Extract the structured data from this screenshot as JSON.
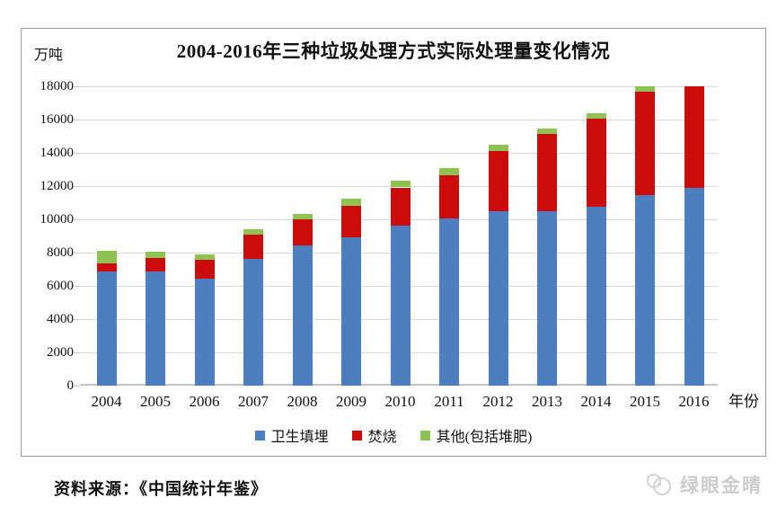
{
  "page": {
    "source_note": "资料来源：《中国统计年鉴》",
    "watermark_text": "绿眼金晴"
  },
  "colors": {
    "landfill_blue": "#4d7ebf",
    "incineration_red": "#cc0b0b",
    "other_green": "#8ec253",
    "gridline": "#dadada",
    "panel_border": "#9b9b9b",
    "watermark_gray": "#cccccc"
  },
  "chart_data": {
    "type": "bar",
    "variant": "stacked",
    "title": "2004-2016年三种垃圾处理方式实际处理量变化情况",
    "unit_label": "万吨",
    "xlabel": "年份",
    "ylabel": "万吨",
    "categories": [
      "2004",
      "2005",
      "2006",
      "2007",
      "2008",
      "2009",
      "2010",
      "2011",
      "2012",
      "2013",
      "2014",
      "2015",
      "2016"
    ],
    "series": [
      {
        "name": "卫生填埋",
        "color": "#4d7ebf",
        "values": [
          6890,
          6860,
          6410,
          7630,
          8420,
          8900,
          9600,
          10060,
          10510,
          10490,
          10740,
          11480,
          11870
        ]
      },
      {
        "name": "焚烧",
        "color": "#cc0b0b",
        "values": [
          450,
          790,
          1140,
          1430,
          1570,
          1900,
          2320,
          2600,
          3580,
          4630,
          5330,
          6180,
          6130
        ]
      },
      {
        "name": "其他(包括堆肥)",
        "color": "#8ec253",
        "values": [
          750,
          400,
          330,
          370,
          310,
          440,
          400,
          430,
          390,
          360,
          320,
          350,
          0
        ]
      }
    ],
    "totals": [
      8090,
      8050,
      7880,
      9430,
      10300,
      11240,
      12320,
      13090,
      14480,
      15480,
      16390,
      18010,
      18000
    ],
    "ylim": [
      0,
      18000
    ],
    "yticks": [
      0,
      2000,
      4000,
      6000,
      8000,
      10000,
      12000,
      14000,
      16000,
      18000
    ],
    "grid": true,
    "legend_position": "bottom"
  }
}
